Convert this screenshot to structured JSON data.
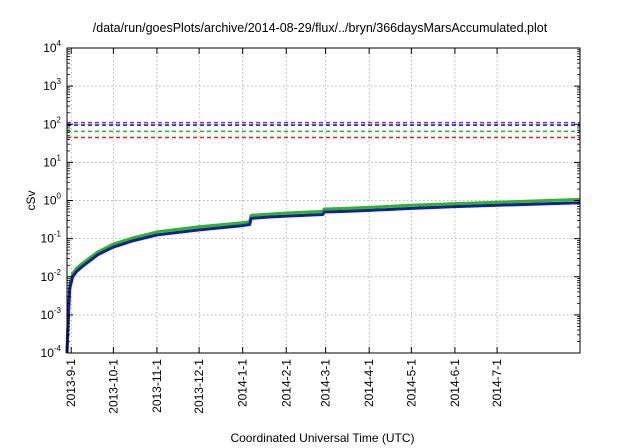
{
  "chart_data": {
    "type": "line",
    "title": "/data/run/goesPlots/archive/2014-08-29/flux/../bryn/366daysMarsAccumulated.plot",
    "xlabel": "Coordinated Universal Time (UTC)",
    "ylabel": "cSv",
    "yscale": "log",
    "ylim": [
      0.0001,
      10000
    ],
    "y_ticks": [
      {
        "value": 0.0001,
        "base": "10",
        "exp": "-4"
      },
      {
        "value": 0.001,
        "base": "10",
        "exp": "-3"
      },
      {
        "value": 0.01,
        "base": "10",
        "exp": "-2"
      },
      {
        "value": 0.1,
        "base": "10",
        "exp": "-1"
      },
      {
        "value": 1,
        "base": "10",
        "exp": "0"
      },
      {
        "value": 10,
        "base": "10",
        "exp": "1"
      },
      {
        "value": 100,
        "base": "10",
        "exp": "2"
      },
      {
        "value": 1000,
        "base": "10",
        "exp": "3"
      },
      {
        "value": 10000,
        "base": "10",
        "exp": "4"
      }
    ],
    "xlim": [
      "2013-08-29",
      "2014-08-29"
    ],
    "x_ticks": [
      "2013-9-1",
      "2013-10-1",
      "2013-11-1",
      "2013-12-1",
      "2014-1-1",
      "2014-2-1",
      "2014-3-1",
      "2014-4-1",
      "2014-5-1",
      "2014-6-1",
      "2014-7-1"
    ],
    "grid": true,
    "reference_lines": [
      {
        "color": "#7b2fbf",
        "value": 110
      },
      {
        "color": "#1a1aaa",
        "value": 95
      },
      {
        "color": "#22bb22",
        "value": 65
      },
      {
        "color": "#dd2222",
        "value": 45
      }
    ],
    "series": [
      {
        "color": "#22bb22",
        "x": [
          "2013-08-29",
          "2013-08-30",
          "2013-08-31",
          "2013-09-02",
          "2013-09-05",
          "2013-09-10",
          "2013-09-20",
          "2013-10-01",
          "2013-10-15",
          "2013-11-01",
          "2013-12-01",
          "2014-01-01",
          "2014-01-06",
          "2014-01-07",
          "2014-01-20",
          "2014-02-01",
          "2014-02-27",
          "2014-02-28",
          "2014-03-15",
          "2014-04-01",
          "2014-05-01",
          "2014-06-01",
          "2014-07-01",
          "2014-08-29"
        ],
        "values": [
          0.0001,
          0.0012,
          0.006,
          0.012,
          0.017,
          0.024,
          0.045,
          0.072,
          0.105,
          0.15,
          0.205,
          0.26,
          0.28,
          0.41,
          0.44,
          0.47,
          0.52,
          0.6,
          0.62,
          0.66,
          0.75,
          0.83,
          0.9,
          1.07
        ]
      },
      {
        "color": "#1a1aaa",
        "x": [
          "2013-08-29",
          "2013-08-30",
          "2013-08-31",
          "2013-09-02",
          "2013-09-05",
          "2013-09-10",
          "2013-09-20",
          "2013-10-01",
          "2013-10-15",
          "2013-11-01",
          "2013-12-01",
          "2014-01-01",
          "2014-01-06",
          "2014-01-07",
          "2014-01-20",
          "2014-02-01",
          "2014-02-27",
          "2014-02-28",
          "2014-03-15",
          "2014-04-01",
          "2014-05-01",
          "2014-06-01",
          "2014-07-01",
          "2014-08-29"
        ],
        "values": [
          0.0001,
          0.001,
          0.005,
          0.01,
          0.014,
          0.02,
          0.038,
          0.06,
          0.088,
          0.125,
          0.17,
          0.22,
          0.235,
          0.34,
          0.37,
          0.39,
          0.43,
          0.5,
          0.52,
          0.55,
          0.62,
          0.69,
          0.75,
          0.87
        ]
      }
    ]
  }
}
